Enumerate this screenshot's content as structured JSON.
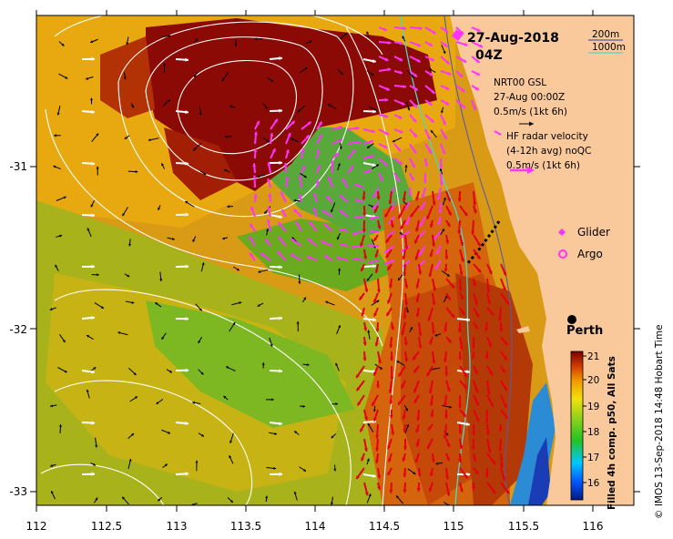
{
  "title": {
    "date": "27-Aug-2018",
    "time": "04Z"
  },
  "depth_legend": {
    "d200": "200m",
    "d1000": "1000m"
  },
  "gsl": {
    "line1": "NRT00 GSL",
    "line2": "27-Aug 00:00Z",
    "line3": "0.5m/s (1kt 6h)"
  },
  "radar": {
    "line1": "HF radar velocity",
    "line2": "(4-12h avg) noQC",
    "line3": "0.5m/s (1kt 6h)"
  },
  "markers": {
    "glider": "Glider",
    "argo": "Argo",
    "perth": "Perth"
  },
  "x_ticks": [
    "112",
    "112.5",
    "113",
    "113.5",
    "114",
    "114.5",
    "115",
    "115.5",
    "116"
  ],
  "y_ticks": [
    "-31",
    "-32",
    "-33"
  ],
  "colorbar": {
    "ticks": [
      "21",
      "20",
      "19",
      "18",
      "17",
      "16"
    ],
    "caption": "Filled 4h comp. p50, All Sats",
    "range": [
      15.3,
      21
    ]
  },
  "credit": "© IMOS 13-Sep-2018 14:48 Hobart Time",
  "colors": {
    "land": "#f9c89b",
    "warm": "#8b0a05",
    "radar_arrows": "#ff33ff",
    "shelf_200m": "#5a5aa0",
    "shelf_1000m": "#4fd6c6"
  }
}
